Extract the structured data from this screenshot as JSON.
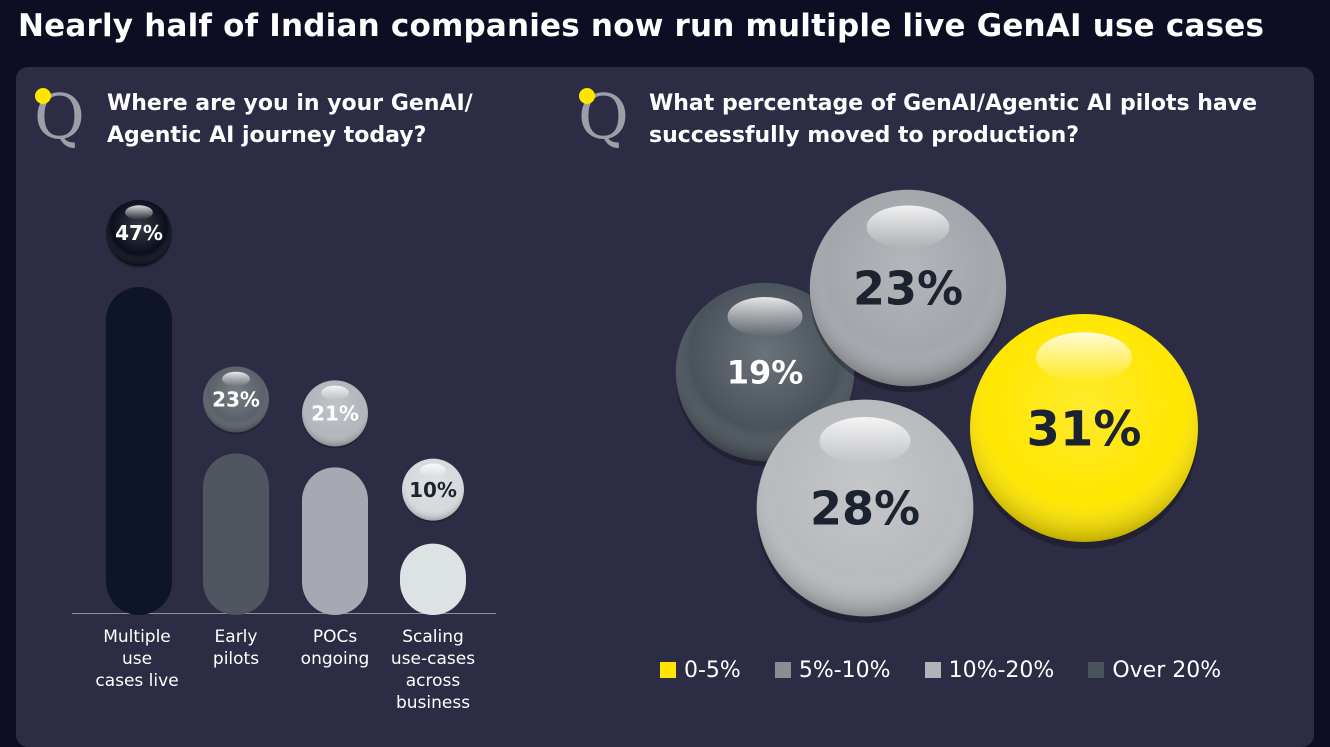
{
  "headline": "Nearly half of Indian companies now run multiple live GenAI use cases",
  "left": {
    "question_line1": "Where are you in your GenAI/",
    "question_line2": "Agentic AI journey today?"
  },
  "right": {
    "question_line1": "What percentage of GenAI/Agentic AI pilots have",
    "question_line2": "successfully moved to production?"
  },
  "colors": {
    "background": "#0d0e24",
    "panel": "#2c2d44",
    "yellow": "#ffe600",
    "qmark_gray": "#9c9ea8"
  },
  "icons": [
    "question-mark-icon"
  ],
  "chart_data": [
    {
      "type": "bar",
      "title": "Where are you in your GenAI/Agentic AI journey today?",
      "categories": [
        [
          "Multiple",
          "use",
          "cases live"
        ],
        [
          "Early",
          "pilots"
        ],
        [
          "POCs",
          "ongoing"
        ],
        [
          "Scaling",
          "use-cases",
          "across",
          "business"
        ]
      ],
      "values": [
        47,
        23,
        21,
        10
      ],
      "labels": [
        "47%",
        "23%",
        "21%",
        "10%"
      ],
      "colors": [
        "#0e1528",
        "#4f565f",
        "#a6a9b1",
        "#dde2e4"
      ],
      "ylim": [
        0,
        50
      ]
    },
    {
      "type": "bubble",
      "title": "What percentage of GenAI/Agentic AI pilots have successfully moved to production?",
      "series": [
        {
          "name": "0-5%",
          "value": 31,
          "label": "31%",
          "color": "#ffe600"
        },
        {
          "name": "5%-10%",
          "value": 28,
          "label": "28%",
          "color": "#b8babd"
        },
        {
          "name": "10%-20%",
          "value": 23,
          "label": "23%",
          "color": "#a3a6ab"
        },
        {
          "name": "Over 20%",
          "value": 19,
          "label": "19%",
          "color": "#4a535c"
        }
      ],
      "legend": [
        "0-5%",
        "5%-10%",
        "10%-20%",
        "Over 20%"
      ],
      "legend_colors": [
        "#ffe600",
        "#8a8e92",
        "#b1b3b6",
        "#4a535c"
      ]
    }
  ]
}
